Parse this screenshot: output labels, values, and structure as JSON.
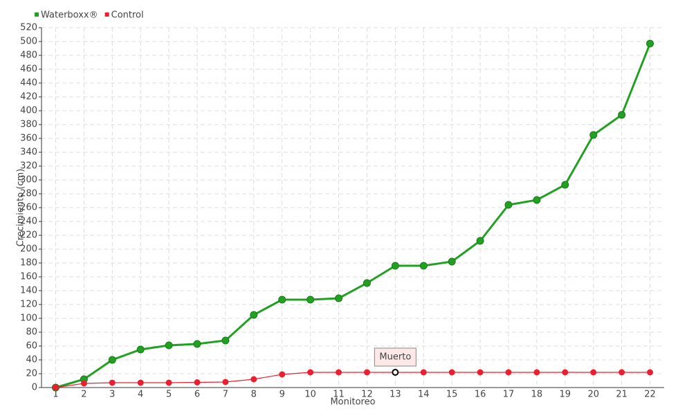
{
  "chart_data": {
    "type": "line",
    "y_label": "Crecimiento (cm)",
    "x_label": "Monitoreo",
    "categories": [
      1,
      2,
      3,
      4,
      5,
      6,
      7,
      8,
      9,
      10,
      11,
      12,
      13,
      14,
      15,
      16,
      17,
      18,
      19,
      20,
      21,
      22
    ],
    "series": [
      {
        "name": "Waterboxx®",
        "color": "#22a022",
        "values": [
          0,
          12,
          40,
          55,
          61,
          63,
          68,
          105,
          127,
          127,
          129,
          151,
          176,
          176,
          182,
          212,
          264,
          271,
          293,
          365,
          394,
          497
        ]
      },
      {
        "name": "Control",
        "color": "#e82030",
        "values": [
          0,
          6,
          7,
          7,
          7,
          7.5,
          8,
          12,
          19,
          22,
          22,
          22,
          22,
          22,
          22,
          22,
          22,
          22,
          22,
          22,
          22,
          22
        ]
      }
    ],
    "ylim": [
      0,
      520
    ],
    "yticks": [
      0,
      20,
      40,
      60,
      80,
      100,
      120,
      140,
      160,
      180,
      200,
      220,
      240,
      260,
      280,
      300,
      320,
      340,
      360,
      380,
      400,
      420,
      440,
      460,
      480,
      500,
      520
    ],
    "grid": true,
    "legend": "top-left",
    "annotations": [
      {
        "text": "Muerto",
        "x": 13,
        "series": "Control"
      }
    ]
  }
}
